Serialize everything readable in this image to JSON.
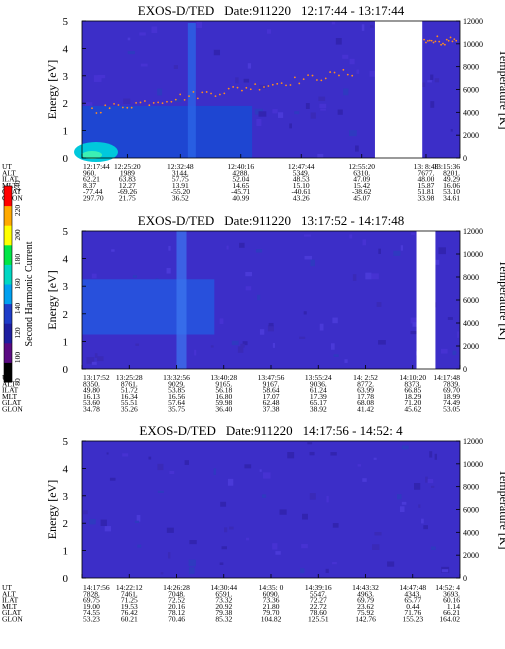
{
  "panels": [
    {
      "title_label": "EXOS-D/TED",
      "date_label": "Date:911220",
      "time_range": "12:17:44 - 13:17:44",
      "ylabel": "Energy [eV]",
      "y2label": "Temperature [K]",
      "ylim": [
        0,
        5
      ],
      "y2lim": [
        0,
        12000
      ],
      "yticks": [
        "0",
        "1",
        "2",
        "3",
        "4",
        "5"
      ],
      "y2ticks": [
        "0",
        "2000",
        "4000",
        "6000",
        "8000",
        "10000",
        "12000"
      ],
      "data_gaps": [
        [
          0.775,
          0.9
        ]
      ],
      "row_labels": [
        "UT",
        "ALT",
        "ILAT",
        "MLT",
        "GLAT",
        "GLON"
      ],
      "columns": [
        [
          "12:17:44",
          "960.",
          "62.21",
          "8.37",
          "-77.44",
          "297.70"
        ],
        [
          "12:25:20",
          "1989",
          "63.83",
          "12.27",
          "-69.26",
          "21.75"
        ],
        [
          "12:32:48",
          "3144.",
          "57.75",
          "13.91",
          "-55.20",
          "36.52"
        ],
        [
          "12:40:16",
          "4288.",
          "52.04",
          "14.65",
          "-45.71",
          "40.99"
        ],
        [
          "12:47:44",
          "5349.",
          "48.53",
          "15.10",
          "-40.61",
          "43.26"
        ],
        [
          "12:55:20",
          "6310.",
          "47.09",
          "15.42",
          "-38.62",
          "45.07"
        ],
        [
          "13: 8:48",
          "7677.",
          "48.00",
          "15.87",
          "51.81",
          "33.98"
        ],
        [
          "13:15:36",
          "8201.",
          "49.29",
          "16.06",
          "53.10",
          "34.61"
        ]
      ]
    },
    {
      "title_label": "EXOS-D/TED",
      "date_label": "Date:911220",
      "time_range": "13:17:52 - 14:17:48",
      "ylabel": "Energy [eV]",
      "y2label": "Temperature [K]",
      "ylim": [
        0,
        5
      ],
      "y2lim": [
        0,
        12000
      ],
      "yticks": [
        "0",
        "1",
        "2",
        "3",
        "4",
        "5"
      ],
      "y2ticks": [
        "0",
        "2000",
        "4000",
        "6000",
        "8000",
        "10000",
        "12000"
      ],
      "data_gaps": [
        [
          0.885,
          0.935
        ]
      ],
      "row_labels": [
        "UT",
        "ALT",
        "ILAT",
        "MLT",
        "GLAT",
        "GLON"
      ],
      "columns": [
        [
          "13:17:52",
          "8350.",
          "49.80",
          "16.13",
          "53.60",
          "34.78"
        ],
        [
          "13:25:28",
          "8761.",
          "51.72",
          "16.34",
          "55.51",
          "35.26"
        ],
        [
          "13:32:56",
          "9029.",
          "53.85",
          "16.56",
          "57.64",
          "35.75"
        ],
        [
          "13:40:28",
          "9165.",
          "56.18",
          "16.80",
          "59.98",
          "36.40"
        ],
        [
          "13:47:56",
          "9167.",
          "58.64",
          "17.07",
          "62.48",
          "37.38"
        ],
        [
          "13:55:24",
          "9036.",
          "61.24",
          "17.39",
          "65.17",
          "38.92"
        ],
        [
          "14: 2:52",
          "8772.",
          "63.99",
          "17.78",
          "68.08",
          "41.42"
        ],
        [
          "14:10:20",
          "8373.",
          "66.85",
          "18.29",
          "71.20",
          "45.62"
        ],
        [
          "14:17:48",
          "7839.",
          "69.70",
          "18.99",
          "74.49",
          "53.05"
        ]
      ]
    },
    {
      "title_label": "EXOS-D/TED",
      "date_label": "Date:911220",
      "time_range": "14:17:56 - 14:52: 4",
      "ylabel": "Energy [eV]",
      "y2label": "Temperature [K]",
      "ylim": [
        0,
        5
      ],
      "y2lim": [
        0,
        12000
      ],
      "yticks": [
        "0",
        "1",
        "2",
        "3",
        "4",
        "5"
      ],
      "y2ticks": [
        "0",
        "2000",
        "4000",
        "6000",
        "8000",
        "10000",
        "12000"
      ],
      "data_gaps": [],
      "row_labels": [
        "UT",
        "ALT",
        "ILAT",
        "MLT",
        "GLAT",
        "GLON"
      ],
      "columns": [
        [
          "14:17:56",
          "7828.",
          "69.75",
          "19.00",
          "74.55",
          "53.23"
        ],
        [
          "14:22:12",
          "7461.",
          "71.25",
          "19.53",
          "76.42",
          "60.21"
        ],
        [
          "14:26:28",
          "7048.",
          "72.52",
          "20.16",
          "78.12",
          "70.46"
        ],
        [
          "14:30:44",
          "6591.",
          "73.32",
          "20.92",
          "79.38",
          "85.32"
        ],
        [
          "14:35: 0",
          "6090.",
          "73.36",
          "21.80",
          "79.70",
          "104.82"
        ],
        [
          "14:39:16",
          "5547.",
          "72.27",
          "22.72",
          "78.60",
          "125.51"
        ],
        [
          "14:43:32",
          "4963.",
          "69.79",
          "23.62",
          "75.92",
          "142.76"
        ],
        [
          "14:47:48",
          "4343.",
          "65.77",
          "0.44",
          "71.76",
          "155.23"
        ],
        [
          "14:52: 4",
          "3693.",
          "60.16",
          "1.14",
          "66.21",
          "164.02"
        ]
      ]
    }
  ],
  "colorbar": {
    "label": "Second Harmonic Current",
    "ticks": [
      "80",
      "100",
      "120",
      "140",
      "160",
      "180",
      "200",
      "220",
      "240"
    ],
    "colors": [
      "#000000",
      "#5a0a82",
      "#1e1ea0",
      "#1e3cc8",
      "#00a0f0",
      "#00d7c3",
      "#00e646",
      "#ffff00",
      "#ffaa00",
      "#ff0000"
    ]
  },
  "chart_data": [
    {
      "type": "heatmap",
      "title": "EXOS-D/TED Date:911220 12:17:44 - 13:17:44",
      "ylabel": "Energy [eV]",
      "y2label": "Temperature [K]",
      "ylim": [
        0,
        5
      ],
      "y2lim": [
        0,
        12000
      ],
      "x_ticks": [
        "12:17:44",
        "12:25:20",
        "12:32:48",
        "12:40:16",
        "12:47:44",
        "12:55:20",
        "13: 8:48",
        "13:15:36"
      ],
      "colorbar_range": [
        80,
        240
      ]
    },
    {
      "type": "heatmap",
      "title": "EXOS-D/TED Date:911220 13:17:52 - 14:17:48",
      "ylabel": "Energy [eV]",
      "y2label": "Temperature [K]",
      "ylim": [
        0,
        5
      ],
      "y2lim": [
        0,
        12000
      ],
      "x_ticks": [
        "13:17:52",
        "13:25:28",
        "13:32:56",
        "13:40:28",
        "13:47:56",
        "13:55:24",
        "14: 2:52",
        "14:10:20",
        "14:17:48"
      ],
      "colorbar_range": [
        80,
        240
      ]
    },
    {
      "type": "heatmap",
      "title": "EXOS-D/TED Date:911220 14:17:56 - 14:52: 4",
      "ylabel": "Energy [eV]",
      "y2label": "Temperature [K]",
      "ylim": [
        0,
        5
      ],
      "y2lim": [
        0,
        12000
      ],
      "x_ticks": [
        "14:17:56",
        "14:22:12",
        "14:26:28",
        "14:30:44",
        "14:35: 0",
        "14:39:16",
        "14:43:32",
        "14:47:48",
        "14:52: 4"
      ],
      "colorbar_range": [
        80,
        240
      ]
    }
  ]
}
